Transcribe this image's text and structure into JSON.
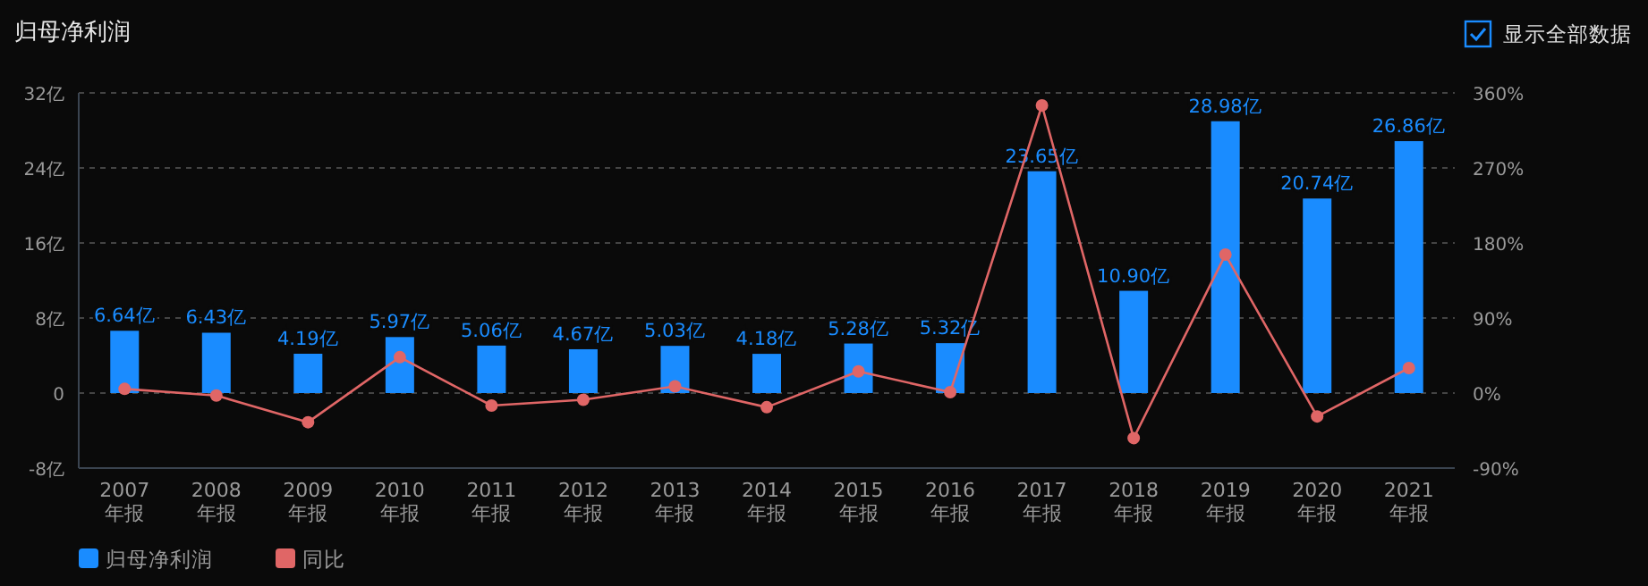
{
  "chart_data": {
    "type": "bar",
    "title": "归母净利润",
    "annotations": [
      "显示全部数据"
    ],
    "categories": [
      "2007\n年报",
      "2008\n年报",
      "2009\n年报",
      "2010\n年报",
      "2011\n年报",
      "2012\n年报",
      "2013\n年报",
      "2014\n年报",
      "2015\n年报",
      "2016\n年报",
      "2017\n年报",
      "2018\n年报",
      "2019\n年报",
      "2020\n年报",
      "2021\n年报"
    ],
    "series": [
      {
        "name": "归母净利润",
        "color": "#1a8cff",
        "values": [
          6.64,
          6.43,
          4.19,
          5.97,
          5.06,
          4.67,
          5.03,
          4.18,
          5.28,
          5.32,
          23.65,
          10.9,
          28.98,
          20.74,
          26.86
        ],
        "value_labels": [
          "6.64亿",
          "6.43亿",
          "4.19亿",
          "5.97亿",
          "5.06亿",
          "4.67亿",
          "5.03亿",
          "4.18亿",
          "5.28亿",
          "5.32亿",
          "23.65亿",
          "10.90亿",
          "28.98亿",
          "20.74亿",
          "26.86亿"
        ]
      },
      {
        "name": "同比",
        "type": "line",
        "axis": "y2",
        "color": "#e06666",
        "marker": "circle",
        "values": [
          5,
          -3,
          -35,
          43,
          -15,
          -8,
          8,
          -17,
          26,
          1,
          345,
          -54,
          166,
          -28,
          30
        ]
      }
    ],
    "ylim": [
      -8,
      32
    ],
    "yticks": [
      {
        "value": -8,
        "label": "-8亿"
      },
      0,
      {
        "value": 8,
        "label": "8亿"
      },
      {
        "value": 16,
        "label": "16亿"
      },
      {
        "value": 24,
        "label": "24亿"
      },
      {
        "value": 32,
        "label": "32亿"
      }
    ],
    "y2lim": [
      -90,
      360
    ],
    "y2ticks": [
      {
        "value": -90,
        "label": "-90%"
      },
      {
        "value": 0,
        "label": "0%"
      },
      {
        "value": 90,
        "label": "90%"
      },
      {
        "value": 180,
        "label": "180%"
      },
      {
        "value": 270,
        "label": "270%"
      },
      {
        "value": 360,
        "label": "360%"
      }
    ],
    "grid": "y",
    "legend": "bottom"
  }
}
